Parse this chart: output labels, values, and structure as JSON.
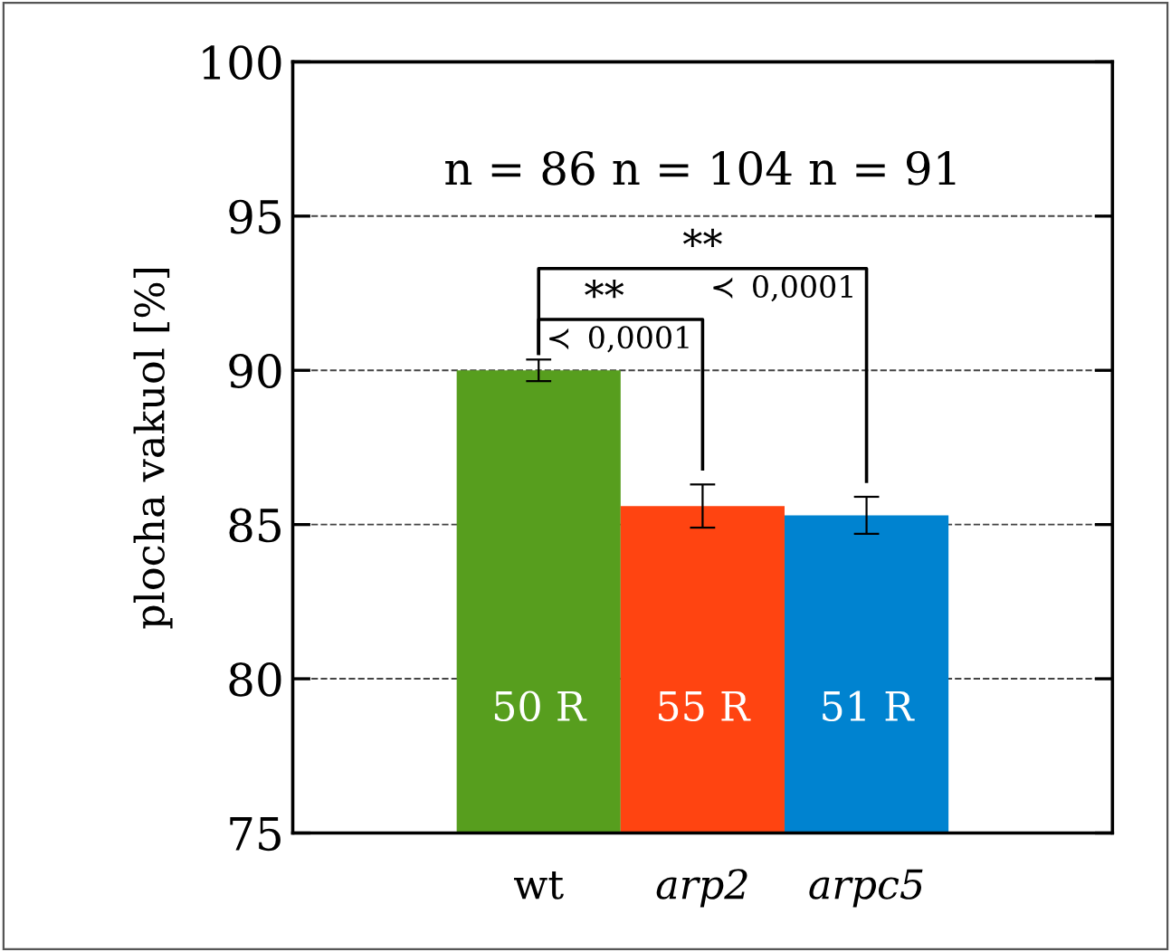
{
  "chart_data": {
    "type": "bar",
    "ylabel": "plocha vakuol [%]",
    "categories": [
      "wt",
      "arp2",
      "arpc5"
    ],
    "values": [
      90.0,
      85.6,
      85.3
    ],
    "colors": [
      "#579e1e",
      "#ff4411",
      "#0083d0"
    ],
    "errors": [
      0.35,
      0.7,
      0.6
    ],
    "ylim": [
      75,
      100
    ],
    "yticks": [
      75,
      80,
      85,
      90,
      95,
      100
    ],
    "grid": "y",
    "line_style": "dashed",
    "annotations": [
      "n = 86 n = 104 n = 91",
      "**",
      "≺ 0,0001",
      "**",
      "≺ 0,0001",
      "50 R",
      "55 R",
      "51 R"
    ]
  }
}
